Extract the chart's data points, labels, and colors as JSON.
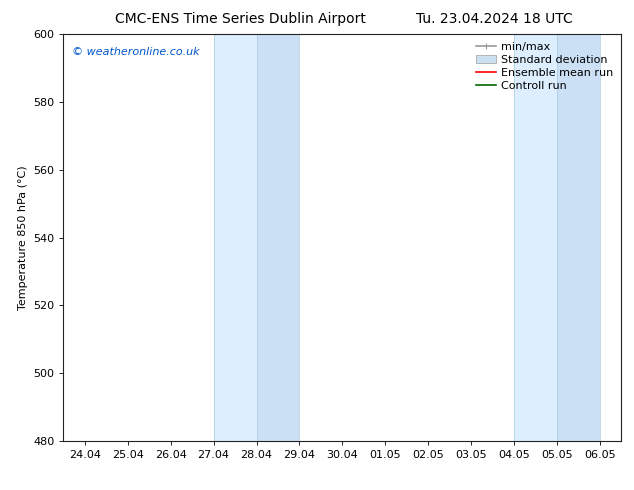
{
  "title_left": "CMC-ENS Time Series Dublin Airport",
  "title_right": "Tu. 23.04.2024 18 UTC",
  "ylabel": "Temperature 850 hPa (°C)",
  "ylim": [
    480,
    600
  ],
  "yticks": [
    480,
    500,
    520,
    540,
    560,
    580,
    600
  ],
  "xtick_labels": [
    "24.04",
    "25.04",
    "26.04",
    "27.04",
    "28.04",
    "29.04",
    "30.04",
    "01.05",
    "02.05",
    "03.05",
    "04.05",
    "05.05",
    "06.05"
  ],
  "watermark": "© weatheronline.co.uk",
  "watermark_color": "#0055cc",
  "background_color": "#ffffff",
  "plot_bg_color": "#ffffff",
  "shaded_regions": [
    {
      "x_start": "27.04",
      "x_end": "28.04",
      "color": "#ddeeff"
    },
    {
      "x_start": "28.04",
      "x_end": "29.04",
      "color": "#cce0f5"
    },
    {
      "x_start": "04.05",
      "x_end": "05.05",
      "color": "#ddeeff"
    },
    {
      "x_start": "05.05",
      "x_end": "06.05",
      "color": "#cce0f5"
    }
  ],
  "legend_items": [
    {
      "label": "min/max",
      "type": "hline",
      "color": "#999999",
      "lw": 1.2
    },
    {
      "label": "Standard deviation",
      "type": "bar",
      "color": "#cce0f0",
      "edgecolor": "#aaaaaa"
    },
    {
      "label": "Ensemble mean run",
      "type": "line",
      "color": "#ff0000",
      "lw": 1.2
    },
    {
      "label": "Controll run",
      "type": "line",
      "color": "#006600",
      "lw": 1.2
    }
  ],
  "title_fontsize": 10,
  "ylabel_fontsize": 8,
  "tick_fontsize": 8,
  "legend_fontsize": 8,
  "watermark_fontsize": 8
}
